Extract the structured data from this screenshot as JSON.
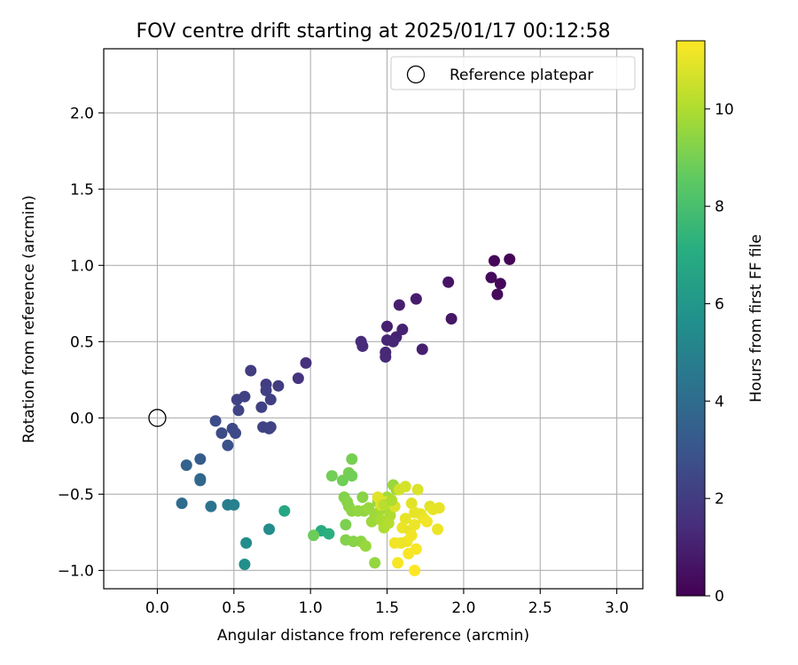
{
  "chart_data": {
    "type": "scatter",
    "title": "FOV centre drift starting at 2025/01/17 00:12:58",
    "xlabel": "Angular distance from reference (arcmin)",
    "ylabel": "Rotation from reference (arcmin)",
    "xlim": [
      -0.35,
      3.17
    ],
    "ylim": [
      -1.12,
      2.42
    ],
    "xticks": [
      0.0,
      0.5,
      1.0,
      1.5,
      2.0,
      2.5,
      3.0
    ],
    "xtick_labels": [
      "0.0",
      "0.5",
      "1.0",
      "1.5",
      "2.0",
      "2.5",
      "3.0"
    ],
    "yticks": [
      -1.0,
      -0.5,
      0.0,
      0.5,
      1.0,
      1.5,
      2.0
    ],
    "ytick_labels": [
      "−1.0",
      "−0.5",
      "0.0",
      "0.5",
      "1.0",
      "1.5",
      "2.0"
    ],
    "grid": true,
    "legend": {
      "location": "top-right",
      "entries": [
        "Reference platepar"
      ]
    },
    "reference_point": {
      "x": 0.0,
      "y": 0.0
    },
    "colorbar": {
      "label": "Hours from first FF file",
      "colormap": "viridis",
      "range": [
        0,
        11.4
      ],
      "ticks": [
        0,
        2,
        4,
        6,
        8,
        10
      ],
      "tick_labels": [
        "0",
        "2",
        "4",
        "6",
        "8",
        "10"
      ]
    },
    "points": [
      {
        "x": 2.3,
        "y": 1.04,
        "c": 0.1
      },
      {
        "x": 2.2,
        "y": 1.03,
        "c": 0.2
      },
      {
        "x": 2.18,
        "y": 0.92,
        "c": 0.3
      },
      {
        "x": 2.24,
        "y": 0.88,
        "c": 0.2
      },
      {
        "x": 2.22,
        "y": 0.81,
        "c": 0.3
      },
      {
        "x": 1.9,
        "y": 0.89,
        "c": 0.6
      },
      {
        "x": 1.92,
        "y": 0.65,
        "c": 0.7
      },
      {
        "x": 1.69,
        "y": 0.78,
        "c": 0.9
      },
      {
        "x": 1.58,
        "y": 0.74,
        "c": 1.0
      },
      {
        "x": 1.5,
        "y": 0.6,
        "c": 1.0
      },
      {
        "x": 1.6,
        "y": 0.58,
        "c": 1.1
      },
      {
        "x": 1.56,
        "y": 0.53,
        "c": 1.1
      },
      {
        "x": 1.5,
        "y": 0.51,
        "c": 1.2
      },
      {
        "x": 1.54,
        "y": 0.5,
        "c": 1.2
      },
      {
        "x": 1.73,
        "y": 0.45,
        "c": 1.0
      },
      {
        "x": 1.49,
        "y": 0.43,
        "c": 1.3
      },
      {
        "x": 1.49,
        "y": 0.4,
        "c": 1.3
      },
      {
        "x": 1.33,
        "y": 0.5,
        "c": 1.4
      },
      {
        "x": 1.34,
        "y": 0.47,
        "c": 1.4
      },
      {
        "x": 0.97,
        "y": 0.36,
        "c": 1.6
      },
      {
        "x": 0.92,
        "y": 0.26,
        "c": 1.7
      },
      {
        "x": 0.61,
        "y": 0.31,
        "c": 2.0
      },
      {
        "x": 0.71,
        "y": 0.22,
        "c": 2.0
      },
      {
        "x": 0.79,
        "y": 0.21,
        "c": 2.0
      },
      {
        "x": 0.71,
        "y": 0.18,
        "c": 2.1
      },
      {
        "x": 0.57,
        "y": 0.14,
        "c": 2.2
      },
      {
        "x": 0.52,
        "y": 0.12,
        "c": 2.2
      },
      {
        "x": 0.74,
        "y": 0.12,
        "c": 2.1
      },
      {
        "x": 0.68,
        "y": 0.07,
        "c": 2.2
      },
      {
        "x": 0.53,
        "y": 0.05,
        "c": 2.3
      },
      {
        "x": 0.38,
        "y": -0.02,
        "c": 2.6
      },
      {
        "x": 0.69,
        "y": -0.06,
        "c": 2.3
      },
      {
        "x": 0.74,
        "y": -0.06,
        "c": 2.3
      },
      {
        "x": 0.73,
        "y": -0.07,
        "c": 2.3
      },
      {
        "x": 0.49,
        "y": -0.07,
        "c": 2.5
      },
      {
        "x": 0.42,
        "y": -0.1,
        "c": 2.6
      },
      {
        "x": 0.51,
        "y": -0.1,
        "c": 2.5
      },
      {
        "x": 0.46,
        "y": -0.18,
        "c": 2.8
      },
      {
        "x": 0.28,
        "y": -0.27,
        "c": 3.3
      },
      {
        "x": 0.19,
        "y": -0.31,
        "c": 3.6
      },
      {
        "x": 0.28,
        "y": -0.4,
        "c": 3.8
      },
      {
        "x": 0.28,
        "y": -0.41,
        "c": 3.8
      },
      {
        "x": 0.16,
        "y": -0.56,
        "c": 4.0
      },
      {
        "x": 0.35,
        "y": -0.58,
        "c": 4.3
      },
      {
        "x": 0.46,
        "y": -0.57,
        "c": 4.8
      },
      {
        "x": 0.5,
        "y": -0.57,
        "c": 4.9
      },
      {
        "x": 0.73,
        "y": -0.73,
        "c": 5.5
      },
      {
        "x": 0.58,
        "y": -0.82,
        "c": 5.5
      },
      {
        "x": 0.57,
        "y": -0.96,
        "c": 5.6
      },
      {
        "x": 0.83,
        "y": -0.61,
        "c": 6.8
      },
      {
        "x": 1.07,
        "y": -0.74,
        "c": 7.0
      },
      {
        "x": 1.12,
        "y": -0.76,
        "c": 7.2
      },
      {
        "x": 1.02,
        "y": -0.77,
        "c": 8.8
      },
      {
        "x": 1.14,
        "y": -0.38,
        "c": 8.9
      },
      {
        "x": 1.21,
        "y": -0.41,
        "c": 8.9
      },
      {
        "x": 1.27,
        "y": -0.27,
        "c": 9.0
      },
      {
        "x": 1.25,
        "y": -0.36,
        "c": 9.0
      },
      {
        "x": 1.27,
        "y": -0.38,
        "c": 8.9
      },
      {
        "x": 1.22,
        "y": -0.52,
        "c": 9.2
      },
      {
        "x": 1.24,
        "y": -0.55,
        "c": 9.3
      },
      {
        "x": 1.25,
        "y": -0.58,
        "c": 9.3
      },
      {
        "x": 1.27,
        "y": -0.61,
        "c": 9.4
      },
      {
        "x": 1.31,
        "y": -0.61,
        "c": 9.5
      },
      {
        "x": 1.34,
        "y": -0.52,
        "c": 9.3
      },
      {
        "x": 1.35,
        "y": -0.61,
        "c": 9.5
      },
      {
        "x": 1.38,
        "y": -0.59,
        "c": 9.6
      },
      {
        "x": 1.4,
        "y": -0.68,
        "c": 9.7
      },
      {
        "x": 1.42,
        "y": -0.63,
        "c": 9.7
      },
      {
        "x": 1.44,
        "y": -0.55,
        "c": 9.6
      },
      {
        "x": 1.46,
        "y": -0.6,
        "c": 9.8
      },
      {
        "x": 1.46,
        "y": -0.67,
        "c": 9.9
      },
      {
        "x": 1.48,
        "y": -0.72,
        "c": 10.0
      },
      {
        "x": 1.5,
        "y": -0.52,
        "c": 9.8
      },
      {
        "x": 1.52,
        "y": -0.6,
        "c": 9.9
      },
      {
        "x": 1.54,
        "y": -0.44,
        "c": 9.6
      },
      {
        "x": 1.56,
        "y": -0.47,
        "c": 9.7
      },
      {
        "x": 1.52,
        "y": -0.64,
        "c": 10.0
      },
      {
        "x": 1.51,
        "y": -0.69,
        "c": 10.1
      },
      {
        "x": 1.23,
        "y": -0.7,
        "c": 9.1
      },
      {
        "x": 1.23,
        "y": -0.8,
        "c": 9.2
      },
      {
        "x": 1.28,
        "y": -0.81,
        "c": 9.3
      },
      {
        "x": 1.33,
        "y": -0.81,
        "c": 9.4
      },
      {
        "x": 1.36,
        "y": -0.84,
        "c": 9.6
      },
      {
        "x": 1.42,
        "y": -0.95,
        "c": 9.5
      },
      {
        "x": 1.44,
        "y": -0.52,
        "c": 10.9
      },
      {
        "x": 1.46,
        "y": -0.57,
        "c": 10.8
      },
      {
        "x": 1.5,
        "y": -0.55,
        "c": 10.9
      },
      {
        "x": 1.55,
        "y": -0.58,
        "c": 10.8
      },
      {
        "x": 1.58,
        "y": -0.47,
        "c": 10.6
      },
      {
        "x": 1.62,
        "y": -0.45,
        "c": 10.7
      },
      {
        "x": 1.66,
        "y": -0.56,
        "c": 10.9
      },
      {
        "x": 1.62,
        "y": -0.66,
        "c": 11.0
      },
      {
        "x": 1.6,
        "y": -0.72,
        "c": 11.1
      },
      {
        "x": 1.65,
        "y": -0.74,
        "c": 11.0
      },
      {
        "x": 1.68,
        "y": -0.62,
        "c": 11.0
      },
      {
        "x": 1.68,
        "y": -0.7,
        "c": 11.1
      },
      {
        "x": 1.7,
        "y": -0.47,
        "c": 10.8
      },
      {
        "x": 1.72,
        "y": -0.63,
        "c": 11.0
      },
      {
        "x": 1.74,
        "y": -0.66,
        "c": 11.1
      },
      {
        "x": 1.76,
        "y": -0.68,
        "c": 11.2
      },
      {
        "x": 1.78,
        "y": -0.58,
        "c": 10.9
      },
      {
        "x": 1.8,
        "y": -0.6,
        "c": 11.0
      },
      {
        "x": 1.84,
        "y": -0.59,
        "c": 11.0
      },
      {
        "x": 1.83,
        "y": -0.73,
        "c": 11.1
      },
      {
        "x": 1.66,
        "y": -0.77,
        "c": 11.2
      },
      {
        "x": 1.63,
        "y": -0.81,
        "c": 11.2
      },
      {
        "x": 1.59,
        "y": -0.82,
        "c": 11.1
      },
      {
        "x": 1.55,
        "y": -0.82,
        "c": 11.2
      },
      {
        "x": 1.69,
        "y": -0.86,
        "c": 11.3
      },
      {
        "x": 1.64,
        "y": -0.89,
        "c": 11.3
      },
      {
        "x": 1.57,
        "y": -0.95,
        "c": 11.3
      },
      {
        "x": 1.68,
        "y": -1.0,
        "c": 11.4
      },
      {
        "x": 1.48,
        "y": -0.57,
        "c": 10.2
      },
      {
        "x": 1.53,
        "y": -0.54,
        "c": 10.0
      }
    ]
  }
}
